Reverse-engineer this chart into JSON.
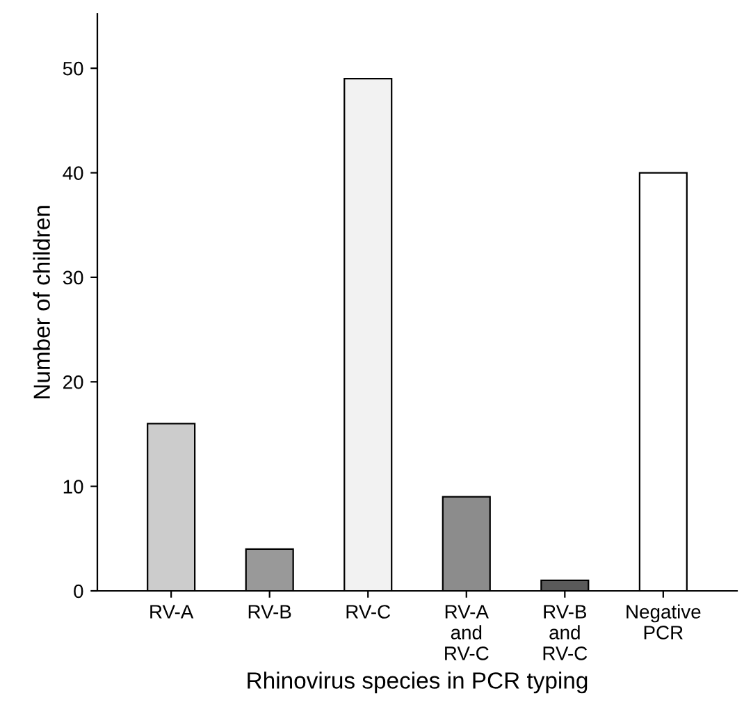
{
  "chart_data": {
    "type": "bar",
    "categories": [
      "RV-A",
      "RV-B",
      "RV-C",
      "RV-A\nand\nRV-C",
      "RV-B\nand\nRV-C",
      "Negative\nPCR"
    ],
    "values": [
      16,
      4,
      49,
      9,
      1,
      40
    ],
    "colors": [
      "#cccccc",
      "#999999",
      "#f2f2f2",
      "#8c8c8c",
      "#5a5a5a",
      "#ffffff"
    ],
    "xlabel": "Rhinovirus species in PCR typing",
    "ylabel": "Number of children",
    "ylim": [
      0,
      55.2
    ],
    "yticks": [
      0,
      10,
      20,
      30,
      40,
      50
    ],
    "grid": false,
    "legend": false
  }
}
